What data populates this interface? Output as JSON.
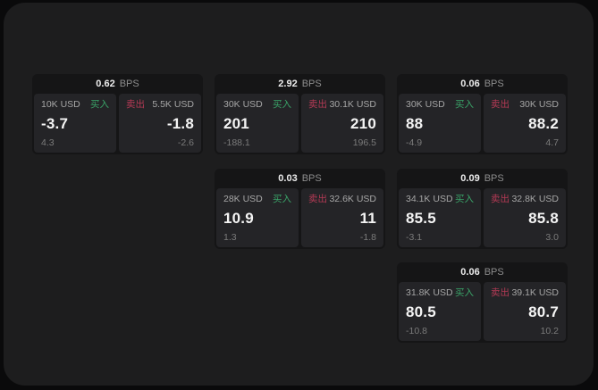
{
  "page": {
    "outer_background": "#0a0a0b",
    "panel_background": "#1d1d1e"
  },
  "colors": {
    "card_background": "#151516",
    "cell_background": "#242427",
    "buy_green": "#3aa368",
    "sell_red": "#b53a55",
    "value_white": "#f4f4f4",
    "muted_gray": "#8d8d8d"
  },
  "labels": {
    "bps_unit": "BPS",
    "buy": "买入",
    "sell": "卖出"
  },
  "cards": [
    {
      "bps": "0.62",
      "buy": {
        "size": "10K USD",
        "value": "-3.7",
        "sub": "4.3"
      },
      "sell": {
        "size": "5.5K USD",
        "value": "-1.8",
        "sub": "-2.6"
      }
    },
    {
      "bps": "2.92",
      "buy": {
        "size": "30K USD",
        "value": "201",
        "sub": "-188.1"
      },
      "sell": {
        "size": "30.1K USD",
        "value": "210",
        "sub": "196.5"
      }
    },
    {
      "bps": "0.06",
      "buy": {
        "size": "30K USD",
        "value": "88",
        "sub": "-4.9"
      },
      "sell": {
        "size": "30K USD",
        "value": "88.2",
        "sub": "4.7"
      }
    },
    {
      "bps": "0.03",
      "buy": {
        "size": "28K USD",
        "value": "10.9",
        "sub": "1.3"
      },
      "sell": {
        "size": "32.6K USD",
        "value": "11",
        "sub": "-1.8"
      }
    },
    {
      "bps": "0.09",
      "buy": {
        "size": "34.1K USD",
        "value": "85.5",
        "sub": "-3.1"
      },
      "sell": {
        "size": "32.8K USD",
        "value": "85.8",
        "sub": "3.0"
      }
    },
    {
      "bps": "0.06",
      "buy": {
        "size": "31.8K USD",
        "value": "80.5",
        "sub": "-10.8"
      },
      "sell": {
        "size": "39.1K USD",
        "value": "80.7",
        "sub": "10.2"
      }
    }
  ]
}
